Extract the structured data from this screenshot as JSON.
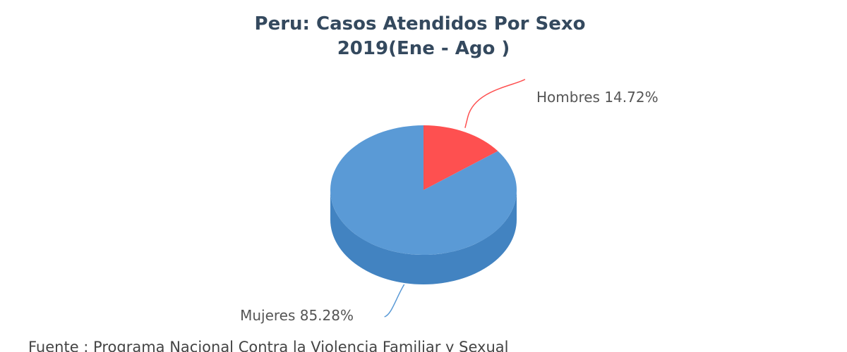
{
  "chart_data": {
    "type": "pie",
    "title_line1": "Peru: Casos Atendidos Por Sexo",
    "title_line2": "2019(Ene - Ago )",
    "slices": [
      {
        "label": "Hombres",
        "value": 14.72,
        "display": "Hombres 14.72%",
        "color": "#fe5050",
        "side_color": "#d84444"
      },
      {
        "label": "Mujeres",
        "value": 85.28,
        "display": "Mujeres 85.28%",
        "color": "#5a9ad6",
        "side_color": "#4283c1"
      }
    ],
    "source": "Fuente : Programa Nacional Contra la Violencia Familiar y Sexual"
  }
}
